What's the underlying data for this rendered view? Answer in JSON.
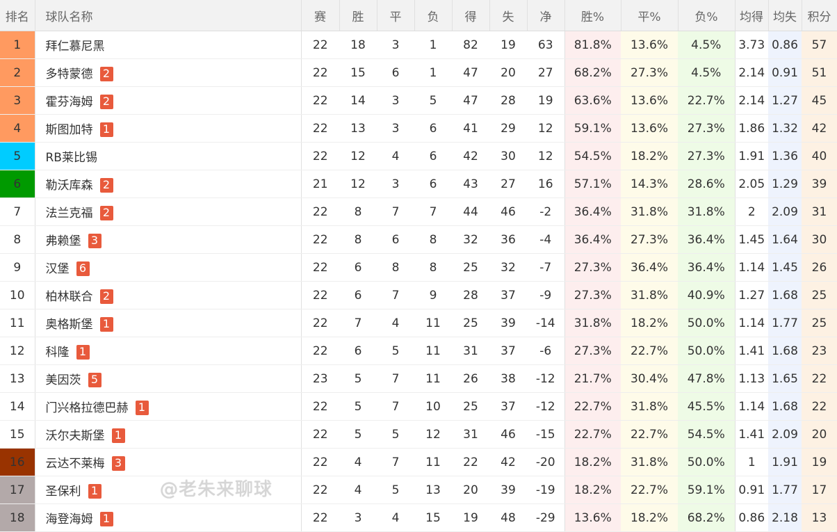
{
  "headers": [
    "排名",
    "球队名称",
    "赛",
    "胜",
    "平",
    "负",
    "得",
    "失",
    "净",
    "胜%",
    "平%",
    "负%",
    "均得",
    "均失",
    "积分"
  ],
  "rank_colors": {
    "1": "#ff9a60",
    "2": "#ff9a60",
    "3": "#ff9a60",
    "4": "#ff9a60",
    "5": "#00ccff",
    "6": "#009a00",
    "16": "#993300",
    "17": "#b3a9a9",
    "18": "#b3a9a9"
  },
  "badge_color": "#e85a3c",
  "rows": [
    {
      "rank": "1",
      "team": "拜仁慕尼黑",
      "badge": "",
      "p": "22",
      "w": "18",
      "d": "3",
      "l": "1",
      "gf": "82",
      "ga": "19",
      "gd": "63",
      "wp": "81.8%",
      "dp": "13.6%",
      "lp": "4.5%",
      "agf": "3.73",
      "aga": "0.86",
      "pts": "57"
    },
    {
      "rank": "2",
      "team": "多特蒙德",
      "badge": "2",
      "p": "22",
      "w": "15",
      "d": "6",
      "l": "1",
      "gf": "47",
      "ga": "20",
      "gd": "27",
      "wp": "68.2%",
      "dp": "27.3%",
      "lp": "4.5%",
      "agf": "2.14",
      "aga": "0.91",
      "pts": "51"
    },
    {
      "rank": "3",
      "team": "霍芬海姆",
      "badge": "2",
      "p": "22",
      "w": "14",
      "d": "3",
      "l": "5",
      "gf": "47",
      "ga": "28",
      "gd": "19",
      "wp": "63.6%",
      "dp": "13.6%",
      "lp": "22.7%",
      "agf": "2.14",
      "aga": "1.27",
      "pts": "45"
    },
    {
      "rank": "4",
      "team": "斯图加特",
      "badge": "1",
      "p": "22",
      "w": "13",
      "d": "3",
      "l": "6",
      "gf": "41",
      "ga": "29",
      "gd": "12",
      "wp": "59.1%",
      "dp": "13.6%",
      "lp": "27.3%",
      "agf": "1.86",
      "aga": "1.32",
      "pts": "42"
    },
    {
      "rank": "5",
      "team": "RB莱比锡",
      "badge": "",
      "p": "22",
      "w": "12",
      "d": "4",
      "l": "6",
      "gf": "42",
      "ga": "30",
      "gd": "12",
      "wp": "54.5%",
      "dp": "18.2%",
      "lp": "27.3%",
      "agf": "1.91",
      "aga": "1.36",
      "pts": "40"
    },
    {
      "rank": "6",
      "team": "勒沃库森",
      "badge": "2",
      "p": "21",
      "w": "12",
      "d": "3",
      "l": "6",
      "gf": "43",
      "ga": "27",
      "gd": "16",
      "wp": "57.1%",
      "dp": "14.3%",
      "lp": "28.6%",
      "agf": "2.05",
      "aga": "1.29",
      "pts": "39"
    },
    {
      "rank": "7",
      "team": "法兰克福",
      "badge": "2",
      "p": "22",
      "w": "8",
      "d": "7",
      "l": "7",
      "gf": "44",
      "ga": "46",
      "gd": "-2",
      "wp": "36.4%",
      "dp": "31.8%",
      "lp": "31.8%",
      "agf": "2",
      "aga": "2.09",
      "pts": "31"
    },
    {
      "rank": "8",
      "team": "弗赖堡",
      "badge": "3",
      "p": "22",
      "w": "8",
      "d": "6",
      "l": "8",
      "gf": "32",
      "ga": "36",
      "gd": "-4",
      "wp": "36.4%",
      "dp": "27.3%",
      "lp": "36.4%",
      "agf": "1.45",
      "aga": "1.64",
      "pts": "30"
    },
    {
      "rank": "9",
      "team": "汉堡",
      "badge": "6",
      "p": "22",
      "w": "6",
      "d": "8",
      "l": "8",
      "gf": "25",
      "ga": "32",
      "gd": "-7",
      "wp": "27.3%",
      "dp": "36.4%",
      "lp": "36.4%",
      "agf": "1.14",
      "aga": "1.45",
      "pts": "26"
    },
    {
      "rank": "10",
      "team": "柏林联合",
      "badge": "2",
      "p": "22",
      "w": "6",
      "d": "7",
      "l": "9",
      "gf": "28",
      "ga": "37",
      "gd": "-9",
      "wp": "27.3%",
      "dp": "31.8%",
      "lp": "40.9%",
      "agf": "1.27",
      "aga": "1.68",
      "pts": "25"
    },
    {
      "rank": "11",
      "team": "奥格斯堡",
      "badge": "1",
      "p": "22",
      "w": "7",
      "d": "4",
      "l": "11",
      "gf": "25",
      "ga": "39",
      "gd": "-14",
      "wp": "31.8%",
      "dp": "18.2%",
      "lp": "50.0%",
      "agf": "1.14",
      "aga": "1.77",
      "pts": "25"
    },
    {
      "rank": "12",
      "team": "科隆",
      "badge": "1",
      "p": "22",
      "w": "6",
      "d": "5",
      "l": "11",
      "gf": "31",
      "ga": "37",
      "gd": "-6",
      "wp": "27.3%",
      "dp": "22.7%",
      "lp": "50.0%",
      "agf": "1.41",
      "aga": "1.68",
      "pts": "23"
    },
    {
      "rank": "13",
      "team": "美因茨",
      "badge": "5",
      "p": "23",
      "w": "5",
      "d": "7",
      "l": "11",
      "gf": "26",
      "ga": "38",
      "gd": "-12",
      "wp": "21.7%",
      "dp": "30.4%",
      "lp": "47.8%",
      "agf": "1.13",
      "aga": "1.65",
      "pts": "22"
    },
    {
      "rank": "14",
      "team": "门兴格拉德巴赫",
      "badge": "1",
      "p": "22",
      "w": "5",
      "d": "7",
      "l": "10",
      "gf": "25",
      "ga": "37",
      "gd": "-12",
      "wp": "22.7%",
      "dp": "31.8%",
      "lp": "45.5%",
      "agf": "1.14",
      "aga": "1.68",
      "pts": "22"
    },
    {
      "rank": "15",
      "team": "沃尔夫斯堡",
      "badge": "1",
      "p": "22",
      "w": "5",
      "d": "5",
      "l": "12",
      "gf": "31",
      "ga": "46",
      "gd": "-15",
      "wp": "22.7%",
      "dp": "22.7%",
      "lp": "54.5%",
      "agf": "1.41",
      "aga": "2.09",
      "pts": "20"
    },
    {
      "rank": "16",
      "team": "云达不莱梅",
      "badge": "3",
      "p": "22",
      "w": "4",
      "d": "7",
      "l": "11",
      "gf": "22",
      "ga": "42",
      "gd": "-20",
      "wp": "18.2%",
      "dp": "31.8%",
      "lp": "50.0%",
      "agf": "1",
      "aga": "1.91",
      "pts": "19"
    },
    {
      "rank": "17",
      "team": "圣保利",
      "badge": "1",
      "p": "22",
      "w": "4",
      "d": "5",
      "l": "13",
      "gf": "20",
      "ga": "39",
      "gd": "-19",
      "wp": "18.2%",
      "dp": "22.7%",
      "lp": "59.1%",
      "agf": "0.91",
      "aga": "1.77",
      "pts": "17"
    },
    {
      "rank": "18",
      "team": "海登海姆",
      "badge": "1",
      "p": "22",
      "w": "3",
      "d": "4",
      "l": "15",
      "gf": "19",
      "ga": "48",
      "gd": "-29",
      "wp": "13.6%",
      "dp": "18.2%",
      "lp": "68.2%",
      "agf": "0.86",
      "aga": "2.18",
      "pts": "13"
    }
  ],
  "watermark": "@老朱来聊球"
}
